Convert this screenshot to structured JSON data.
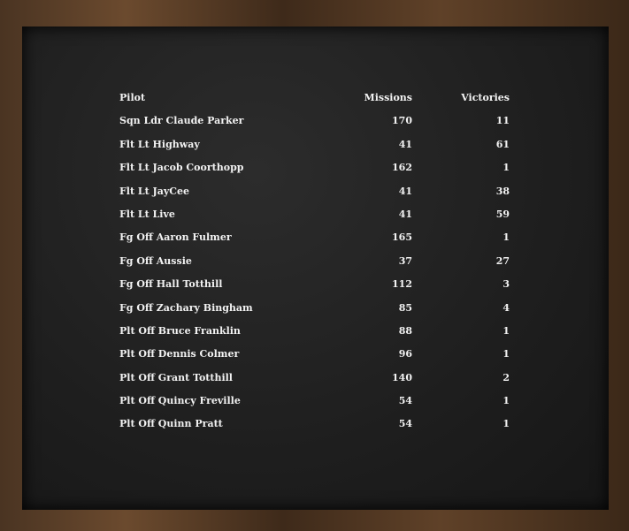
{
  "table": {
    "headers": {
      "pilot": "Pilot",
      "missions": "Missions",
      "victories": "Victories"
    },
    "rows": [
      {
        "pilot": "Sqn Ldr Claude Parker",
        "missions": "170",
        "victories": "11"
      },
      {
        "pilot": "Flt Lt Highway",
        "missions": "41",
        "victories": "61"
      },
      {
        "pilot": "Flt Lt Jacob Coorthopp",
        "missions": "162",
        "victories": "1"
      },
      {
        "pilot": "Flt Lt JayCee",
        "missions": "41",
        "victories": "38"
      },
      {
        "pilot": "Flt Lt Live",
        "missions": "41",
        "victories": "59"
      },
      {
        "pilot": "Fg Off Aaron Fulmer",
        "missions": "165",
        "victories": "1"
      },
      {
        "pilot": "Fg Off Aussie",
        "missions": "37",
        "victories": "27"
      },
      {
        "pilot": "Fg Off Hall Totthill",
        "missions": "112",
        "victories": "3"
      },
      {
        "pilot": "Fg Off Zachary Bingham",
        "missions": "85",
        "victories": "4"
      },
      {
        "pilot": "Plt Off Bruce Franklin",
        "missions": "88",
        "victories": "1"
      },
      {
        "pilot": "Plt Off Dennis Colmer",
        "missions": "96",
        "victories": "1"
      },
      {
        "pilot": "Plt Off Grant Totthill",
        "missions": "140",
        "victories": "2"
      },
      {
        "pilot": "Plt Off Quincy Freville",
        "missions": "54",
        "victories": "1"
      },
      {
        "pilot": "Plt Off Quinn Pratt",
        "missions": "54",
        "victories": "1"
      }
    ]
  }
}
